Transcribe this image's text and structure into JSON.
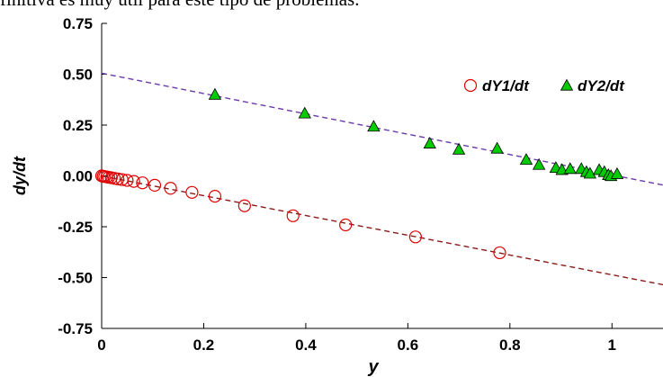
{
  "header_text": "finitiva es muy útil para este tipo de problemas.",
  "chart_data": {
    "type": "scatter",
    "title": "",
    "xlabel": "y",
    "ylabel": "dy/dt",
    "xlim": [
      0,
      1.1
    ],
    "ylim": [
      -0.75,
      0.75
    ],
    "x_ticks": [
      "0",
      "0.2",
      "0.4",
      "0.6",
      "0.8",
      "1"
    ],
    "x_tick_values": [
      0,
      0.2,
      0.4,
      0.6,
      0.8,
      1.0
    ],
    "y_ticks": [
      "0.75",
      "0.50",
      "0.25",
      "0.00",
      "-0.25",
      "-0.50",
      "-0.75"
    ],
    "y_tick_values": [
      0.75,
      0.5,
      0.25,
      0.0,
      -0.25,
      -0.5,
      -0.75
    ],
    "grid": false,
    "legend_position": "top-right",
    "series": [
      {
        "name": "dY1/dt",
        "marker": "circle-open",
        "color": "#e00000",
        "x": [
          0.0,
          0.003,
          0.006,
          0.01,
          0.014,
          0.019,
          0.025,
          0.032,
          0.04,
          0.05,
          0.063,
          0.08,
          0.104,
          0.135,
          0.177,
          0.222,
          0.28,
          0.375,
          0.478,
          0.615,
          0.78
        ],
        "y": [
          0.0,
          -0.002,
          -0.003,
          -0.005,
          -0.007,
          -0.009,
          -0.012,
          -0.015,
          -0.018,
          -0.022,
          -0.027,
          -0.034,
          -0.046,
          -0.061,
          -0.081,
          -0.1,
          -0.147,
          -0.196,
          -0.241,
          -0.3,
          -0.378
        ]
      },
      {
        "name": "dY2/dt",
        "marker": "triangle-filled",
        "color": "#00cc00",
        "x": [
          0.222,
          0.398,
          0.533,
          0.643,
          0.7,
          0.775,
          0.832,
          0.857,
          0.89,
          0.902,
          0.918,
          0.94,
          0.95,
          0.957,
          0.975,
          0.985,
          0.993,
          0.998,
          1.01
        ],
        "y": [
          0.4,
          0.308,
          0.243,
          0.16,
          0.13,
          0.135,
          0.08,
          0.055,
          0.04,
          0.03,
          0.035,
          0.035,
          0.02,
          0.012,
          0.03,
          0.02,
          0.005,
          0.0,
          0.01
        ]
      }
    ],
    "fit_lines": [
      {
        "series": "dY1/dt",
        "color": "#8b1a1a",
        "x": [
          0.0,
          1.1
        ],
        "y": [
          0.0,
          -0.535
        ]
      },
      {
        "series": "dY2/dt",
        "color": "#6a3aaa",
        "x": [
          0.0,
          1.1
        ],
        "y": [
          0.505,
          -0.045
        ]
      }
    ]
  }
}
